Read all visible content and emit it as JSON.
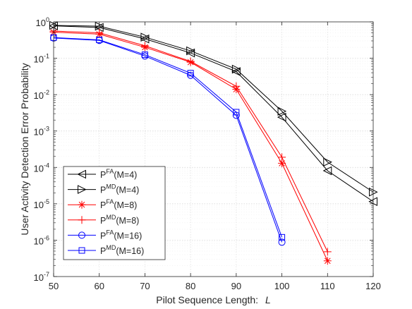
{
  "chart_data": {
    "type": "line",
    "title": "",
    "xlabel": "Pilot Sequence Length:",
    "xlabel_var": "L",
    "ylabel": "User Activity Detection Error Probability",
    "x": [
      50,
      60,
      70,
      80,
      90,
      100,
      110,
      120
    ],
    "xlim": [
      50,
      120
    ],
    "ylim": [
      1e-07,
      1
    ],
    "yscale": "log",
    "grid": true,
    "minor_grid": true,
    "legend_position": "bottom-left",
    "x_tick_labels": [
      "50",
      "60",
      "70",
      "80",
      "90",
      "100",
      "110",
      "120"
    ],
    "y_tick_labels": [
      {
        "base": "10",
        "exp": "-7"
      },
      {
        "base": "10",
        "exp": "-6"
      },
      {
        "base": "10",
        "exp": "-5"
      },
      {
        "base": "10",
        "exp": "-4"
      },
      {
        "base": "10",
        "exp": "-3"
      },
      {
        "base": "10",
        "exp": "-2"
      },
      {
        "base": "10",
        "exp": "-1"
      },
      {
        "base": "10",
        "exp": "0"
      }
    ],
    "series": [
      {
        "label_main": "P",
        "label_sup": "FA",
        "label_tail": "(M=4)",
        "color": "#000000",
        "marker": "triangle-left",
        "x": [
          50,
          60,
          70,
          80,
          90,
          100,
          110,
          120
        ],
        "values": [
          0.78,
          0.7,
          0.34,
          0.14,
          0.043,
          0.0024,
          8.1e-05,
          1.15e-05
        ]
      },
      {
        "label_main": "P",
        "label_sup": "MD",
        "label_tail": "(M=4)",
        "color": "#000000",
        "marker": "triangle-right",
        "x": [
          50,
          60,
          70,
          80,
          90,
          100,
          110,
          120
        ],
        "values": [
          0.8,
          0.76,
          0.38,
          0.16,
          0.05,
          0.0035,
          0.00014,
          2.1e-05
        ]
      },
      {
        "label_main": "P",
        "label_sup": "FA",
        "label_tail": "(M=8)",
        "color": "#ff0000",
        "marker": "asterisk",
        "x": [
          50,
          60,
          70,
          80,
          90,
          100,
          110
        ],
        "values": [
          0.52,
          0.46,
          0.2,
          0.078,
          0.014,
          0.00013,
          2.7e-07
        ]
      },
      {
        "label_main": "P",
        "label_sup": "MD",
        "label_tail": "(M=8)",
        "color": "#ff0000",
        "marker": "plus",
        "x": [
          50,
          60,
          70,
          80,
          90,
          100,
          110
        ],
        "values": [
          0.56,
          0.5,
          0.22,
          0.082,
          0.017,
          0.00019,
          4.8e-07
        ]
      },
      {
        "label_main": "P",
        "label_sup": "FA",
        "label_tail": "(M=16)",
        "color": "#0000ff",
        "marker": "circle",
        "x": [
          50,
          60,
          70,
          80,
          90,
          100
        ],
        "values": [
          0.36,
          0.31,
          0.115,
          0.034,
          0.0027,
          8.8e-07
        ]
      },
      {
        "label_main": "P",
        "label_sup": "MD",
        "label_tail": "(M=16)",
        "color": "#0000ff",
        "marker": "square",
        "x": [
          50,
          60,
          70,
          80,
          90,
          100
        ],
        "values": [
          0.37,
          0.32,
          0.125,
          0.039,
          0.0033,
          1.2e-06
        ]
      }
    ]
  }
}
